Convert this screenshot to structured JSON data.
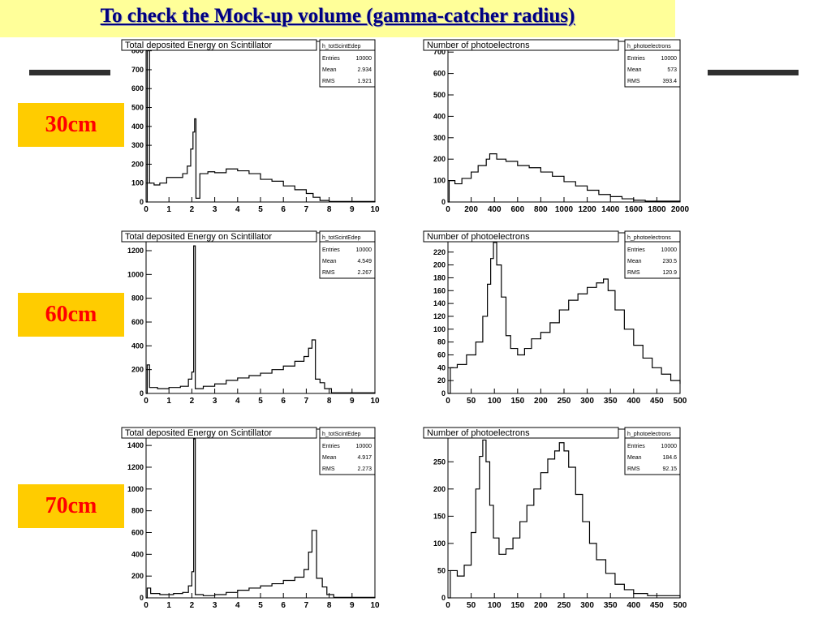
{
  "slide": {
    "title": "To check the Mock-up volume (gamma-catcher radius)",
    "accent_colors": {
      "title_bg": "#ffff99",
      "title_text": "#000080",
      "label_bg": "#ffcc00",
      "label_text": "#ff0000"
    }
  },
  "rows": [
    {
      "label": "30cm"
    },
    {
      "label": "60cm"
    },
    {
      "label": "70cm"
    }
  ],
  "chart_data": [
    {
      "type": "histogram",
      "title": "Total deposited Energy on Scintillator",
      "stats": {
        "name": "h_totScintEdep",
        "entries_label": "Entries",
        "entries": "10000",
        "mean_label": "Mean",
        "mean": "2.934",
        "rms_label": "RMS",
        "rms": "1.921"
      },
      "xlim": [
        0,
        10
      ],
      "ylim": [
        0,
        850
      ],
      "xticks": [
        0,
        1,
        2,
        3,
        4,
        5,
        6,
        7,
        8,
        9,
        10
      ],
      "yticks": [
        0,
        100,
        200,
        300,
        400,
        500,
        600,
        700,
        800
      ],
      "points": [
        [
          0,
          0
        ],
        [
          0.05,
          820
        ],
        [
          0.15,
          100
        ],
        [
          0.35,
          90
        ],
        [
          0.6,
          100
        ],
        [
          0.9,
          130
        ],
        [
          1.3,
          130
        ],
        [
          1.6,
          150
        ],
        [
          1.8,
          190
        ],
        [
          1.95,
          280
        ],
        [
          2.05,
          370
        ],
        [
          2.12,
          440
        ],
        [
          2.18,
          20
        ],
        [
          2.35,
          150
        ],
        [
          2.7,
          160
        ],
        [
          3.0,
          155
        ],
        [
          3.5,
          175
        ],
        [
          4.0,
          165
        ],
        [
          4.5,
          150
        ],
        [
          5.0,
          120
        ],
        [
          5.5,
          110
        ],
        [
          6.0,
          85
        ],
        [
          6.5,
          65
        ],
        [
          7.0,
          45
        ],
        [
          7.3,
          25
        ],
        [
          7.6,
          8
        ],
        [
          8.0,
          3
        ],
        [
          10,
          0
        ]
      ]
    },
    {
      "type": "histogram",
      "title": "Number of photoelectrons",
      "stats": {
        "name": "h_photoelectrons",
        "entries_label": "Entries",
        "entries": "10000",
        "mean_label": "Mean",
        "mean": "573",
        "rms_label": "RMS",
        "rms": "393.4"
      },
      "xlim": [
        0,
        2000
      ],
      "ylim": [
        0,
        750
      ],
      "xticks": [
        0,
        200,
        400,
        600,
        800,
        1000,
        1200,
        1400,
        1600,
        1800,
        2000
      ],
      "yticks": [
        0,
        100,
        200,
        300,
        400,
        500,
        600,
        700
      ],
      "points": [
        [
          0,
          0
        ],
        [
          10,
          100
        ],
        [
          60,
          85
        ],
        [
          120,
          110
        ],
        [
          200,
          140
        ],
        [
          260,
          170
        ],
        [
          330,
          200
        ],
        [
          360,
          225
        ],
        [
          420,
          200
        ],
        [
          500,
          190
        ],
        [
          600,
          170
        ],
        [
          700,
          160
        ],
        [
          800,
          140
        ],
        [
          900,
          120
        ],
        [
          1000,
          95
        ],
        [
          1100,
          75
        ],
        [
          1200,
          55
        ],
        [
          1300,
          35
        ],
        [
          1400,
          25
        ],
        [
          1500,
          15
        ],
        [
          1600,
          8
        ],
        [
          1700,
          4
        ],
        [
          2000,
          0
        ]
      ]
    },
    {
      "type": "histogram",
      "title": "Total deposited Energy on Scintillator",
      "stats": {
        "name": "h_totScintEdep",
        "entries_label": "Entries",
        "entries": "10000",
        "mean_label": "Mean",
        "mean": "4.549",
        "rms_label": "RMS",
        "rms": "2.267"
      },
      "xlim": [
        0,
        10
      ],
      "ylim": [
        0,
        1350
      ],
      "xticks": [
        0,
        1,
        2,
        3,
        4,
        5,
        6,
        7,
        8,
        9,
        10
      ],
      "yticks": [
        0,
        200,
        400,
        600,
        800,
        1000,
        1200
      ],
      "points": [
        [
          0,
          0
        ],
        [
          0.05,
          240
        ],
        [
          0.15,
          50
        ],
        [
          0.5,
          40
        ],
        [
          1.0,
          50
        ],
        [
          1.5,
          60
        ],
        [
          1.85,
          120
        ],
        [
          2.0,
          180
        ],
        [
          2.08,
          1240
        ],
        [
          2.15,
          40
        ],
        [
          2.5,
          60
        ],
        [
          3.0,
          80
        ],
        [
          3.5,
          110
        ],
        [
          4.0,
          130
        ],
        [
          4.5,
          150
        ],
        [
          5.0,
          170
        ],
        [
          5.5,
          200
        ],
        [
          6.0,
          230
        ],
        [
          6.5,
          270
        ],
        [
          6.9,
          310
        ],
        [
          7.1,
          380
        ],
        [
          7.25,
          450
        ],
        [
          7.4,
          120
        ],
        [
          7.6,
          90
        ],
        [
          7.8,
          40
        ],
        [
          8.1,
          5
        ],
        [
          10,
          0
        ]
      ]
    },
    {
      "type": "histogram",
      "title": "Number of photoelectrons",
      "stats": {
        "name": "h_photoelectrons",
        "entries_label": "Entries",
        "entries": "10000",
        "mean_label": "Mean",
        "mean": "230.5",
        "rms_label": "RMS",
        "rms": "120.9"
      },
      "xlim": [
        0,
        500
      ],
      "ylim": [
        0,
        250
      ],
      "xticks": [
        0,
        50,
        100,
        150,
        200,
        250,
        300,
        350,
        400,
        450,
        500
      ],
      "yticks": [
        0,
        20,
        40,
        60,
        80,
        100,
        120,
        140,
        160,
        180,
        200,
        220,
        240
      ],
      "points": [
        [
          0,
          0
        ],
        [
          5,
          40
        ],
        [
          20,
          45
        ],
        [
          40,
          60
        ],
        [
          60,
          80
        ],
        [
          75,
          120
        ],
        [
          85,
          170
        ],
        [
          92,
          210
        ],
        [
          98,
          235
        ],
        [
          105,
          200
        ],
        [
          115,
          150
        ],
        [
          125,
          90
        ],
        [
          135,
          70
        ],
        [
          150,
          60
        ],
        [
          165,
          70
        ],
        [
          180,
          85
        ],
        [
          200,
          95
        ],
        [
          220,
          110
        ],
        [
          240,
          130
        ],
        [
          260,
          145
        ],
        [
          280,
          155
        ],
        [
          300,
          165
        ],
        [
          320,
          172
        ],
        [
          335,
          178
        ],
        [
          345,
          160
        ],
        [
          360,
          130
        ],
        [
          380,
          100
        ],
        [
          400,
          75
        ],
        [
          420,
          55
        ],
        [
          440,
          40
        ],
        [
          460,
          30
        ],
        [
          480,
          20
        ],
        [
          500,
          15
        ]
      ]
    },
    {
      "type": "histogram",
      "title": "Total deposited Energy on Scintillator",
      "stats": {
        "name": "h_totScintEdep",
        "entries_label": "Entries",
        "entries": "10000",
        "mean_label": "Mean",
        "mean": "4.917",
        "rms_label": "RMS",
        "rms": "2.273"
      },
      "xlim": [
        0,
        10
      ],
      "ylim": [
        0,
        1550
      ],
      "xticks": [
        0,
        1,
        2,
        3,
        4,
        5,
        6,
        7,
        8,
        9,
        10
      ],
      "yticks": [
        0,
        200,
        400,
        600,
        800,
        1000,
        1200,
        1400
      ],
      "points": [
        [
          0,
          0
        ],
        [
          0.05,
          90
        ],
        [
          0.2,
          40
        ],
        [
          0.6,
          30
        ],
        [
          1.2,
          40
        ],
        [
          1.6,
          50
        ],
        [
          1.85,
          110
        ],
        [
          2.0,
          240
        ],
        [
          2.08,
          1460
        ],
        [
          2.15,
          30
        ],
        [
          2.5,
          20
        ],
        [
          3.0,
          30
        ],
        [
          3.5,
          50
        ],
        [
          4.0,
          70
        ],
        [
          4.5,
          90
        ],
        [
          5.0,
          110
        ],
        [
          5.5,
          130
        ],
        [
          6.0,
          160
        ],
        [
          6.5,
          190
        ],
        [
          6.9,
          260
        ],
        [
          7.1,
          420
        ],
        [
          7.25,
          620
        ],
        [
          7.45,
          180
        ],
        [
          7.7,
          100
        ],
        [
          7.9,
          30
        ],
        [
          8.2,
          5
        ],
        [
          10,
          0
        ]
      ]
    },
    {
      "type": "histogram",
      "title": "Number of photoelectrons",
      "stats": {
        "name": "h_photoelectrons",
        "entries_label": "Entries",
        "entries": "10000",
        "mean_label": "Mean",
        "mean": "184.6",
        "rms_label": "RMS",
        "rms": "92.15"
      },
      "xlim": [
        0,
        500
      ],
      "ylim": [
        0,
        310
      ],
      "xticks": [
        0,
        50,
        100,
        150,
        200,
        250,
        300,
        350,
        400,
        450,
        500
      ],
      "yticks": [
        0,
        50,
        100,
        150,
        200,
        250,
        300
      ],
      "points": [
        [
          0,
          0
        ],
        [
          5,
          50
        ],
        [
          20,
          40
        ],
        [
          35,
          60
        ],
        [
          50,
          120
        ],
        [
          60,
          200
        ],
        [
          68,
          260
        ],
        [
          75,
          290
        ],
        [
          82,
          250
        ],
        [
          90,
          170
        ],
        [
          98,
          110
        ],
        [
          110,
          80
        ],
        [
          125,
          90
        ],
        [
          140,
          110
        ],
        [
          155,
          140
        ],
        [
          170,
          170
        ],
        [
          185,
          200
        ],
        [
          200,
          230
        ],
        [
          215,
          255
        ],
        [
          230,
          270
        ],
        [
          240,
          285
        ],
        [
          250,
          270
        ],
        [
          260,
          240
        ],
        [
          275,
          190
        ],
        [
          290,
          140
        ],
        [
          305,
          100
        ],
        [
          320,
          70
        ],
        [
          340,
          45
        ],
        [
          360,
          25
        ],
        [
          380,
          15
        ],
        [
          400,
          8
        ],
        [
          430,
          4
        ],
        [
          500,
          0
        ]
      ]
    }
  ]
}
